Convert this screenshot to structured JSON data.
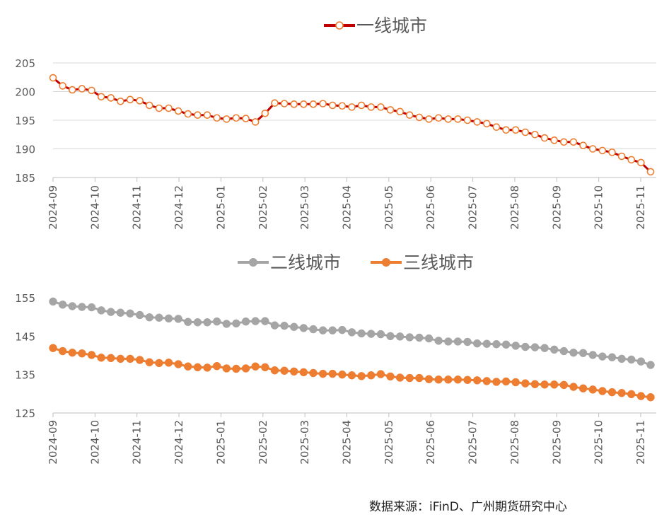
{
  "colors": {
    "tier1_line": "#C00000",
    "tier1_marker_stroke": "#ED7D31",
    "tier1_marker_fill": "#FFFFFF",
    "tier2": "#A5A5A5",
    "tier3": "#ED7D31",
    "grid": "#D9D9D9",
    "axis": "#BFBFBF"
  },
  "chart_data": [
    {
      "type": "line",
      "legend_position": "top",
      "grid": true,
      "ylim": [
        185,
        205
      ],
      "yticks": [
        "205",
        "200",
        "195",
        "190",
        "185"
      ],
      "xticks": [
        "2024-09",
        "2024-10",
        "2024-11",
        "2024-12",
        "2025-01",
        "2025-02",
        "2025-03",
        "2025-04",
        "2025-05",
        "2025-06",
        "2025-07",
        "2025-08",
        "2025-09",
        "2025-10",
        "2025-11"
      ],
      "series": [
        {
          "name": "一线城市",
          "values": [
            202.4,
            201.0,
            200.3,
            200.5,
            200.2,
            199.1,
            198.9,
            198.3,
            198.6,
            198.4,
            197.6,
            197.1,
            197.1,
            196.6,
            196.1,
            195.9,
            195.9,
            195.4,
            195.2,
            195.4,
            195.3,
            194.7,
            196.2,
            198.0,
            197.9,
            197.8,
            197.8,
            197.8,
            197.9,
            197.6,
            197.5,
            197.3,
            197.6,
            197.3,
            197.3,
            196.8,
            196.5,
            195.9,
            195.5,
            195.2,
            195.4,
            195.2,
            195.2,
            195.0,
            194.7,
            194.4,
            193.8,
            193.3,
            193.3,
            192.9,
            192.5,
            191.9,
            191.5,
            191.2,
            191.2,
            190.6,
            190.0,
            189.7,
            189.4,
            188.7,
            188.1,
            187.6,
            186.0
          ]
        }
      ]
    },
    {
      "type": "line",
      "legend_position": "top",
      "grid": false,
      "ylim": [
        125,
        155
      ],
      "yticks": [
        "155",
        "145",
        "135",
        "125"
      ],
      "xticks": [
        "2024-09",
        "2024-10",
        "2024-11",
        "2024-12",
        "2025-01",
        "2025-02",
        "2025-03",
        "2025-04",
        "2025-05",
        "2025-06",
        "2025-07",
        "2025-08",
        "2025-09",
        "2025-10",
        "2025-11"
      ],
      "series": [
        {
          "name": "二线城市",
          "values": [
            154.0,
            153.2,
            152.8,
            152.6,
            152.5,
            151.7,
            151.3,
            151.1,
            150.9,
            150.5,
            149.9,
            149.8,
            149.6,
            149.5,
            148.7,
            148.6,
            148.6,
            148.8,
            148.2,
            148.3,
            148.8,
            148.9,
            148.9,
            147.8,
            147.7,
            147.4,
            147.1,
            146.8,
            146.5,
            146.5,
            146.6,
            146.0,
            145.7,
            145.6,
            145.5,
            145.0,
            144.9,
            144.7,
            144.6,
            144.4,
            143.8,
            143.6,
            143.6,
            143.5,
            143.1,
            143.0,
            142.9,
            142.8,
            142.5,
            142.2,
            142.1,
            141.9,
            141.5,
            141.1,
            140.7,
            140.6,
            140.1,
            139.7,
            139.5,
            139.1,
            138.9,
            138.4,
            137.5
          ]
        },
        {
          "name": "三线城市",
          "values": [
            141.9,
            141.1,
            140.7,
            140.5,
            140.1,
            139.4,
            139.3,
            139.1,
            139.1,
            138.8,
            138.2,
            138.0,
            138.1,
            137.7,
            137.1,
            136.9,
            136.8,
            137.2,
            136.6,
            136.5,
            136.6,
            137.1,
            136.9,
            136.1,
            136.0,
            135.8,
            135.6,
            135.4,
            135.2,
            135.2,
            135.0,
            134.8,
            134.6,
            134.8,
            135.1,
            134.5,
            134.2,
            134.1,
            134.1,
            133.8,
            133.7,
            133.7,
            133.7,
            133.6,
            133.5,
            133.3,
            133.1,
            133.2,
            133.0,
            132.7,
            132.5,
            132.4,
            132.4,
            132.3,
            131.8,
            131.4,
            131.1,
            130.7,
            130.4,
            130.2,
            129.9,
            129.4,
            129.1
          ]
        }
      ]
    }
  ],
  "source_note": "数据来源：iFinD、广州期货研究中心"
}
